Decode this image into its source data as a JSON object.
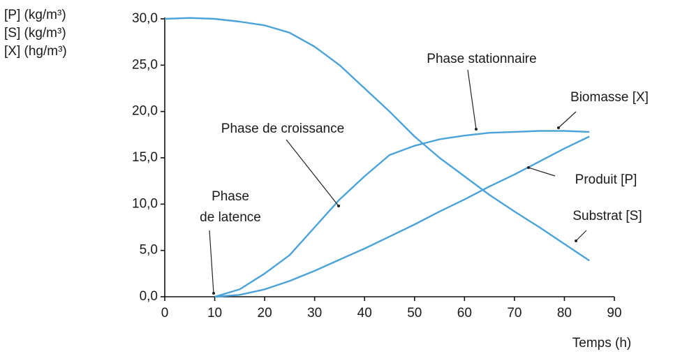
{
  "chart_data": {
    "type": "line",
    "y_label_lines": [
      "[P]  (kg/m³)",
      "[S]  (kg/m³)",
      "[X]  (hg/m³)"
    ],
    "x_label": "Temps (h)",
    "x": [
      0,
      5,
      10,
      15,
      20,
      25,
      30,
      35,
      40,
      45,
      50,
      55,
      60,
      65,
      70,
      75,
      80,
      85
    ],
    "series": [
      {
        "name": "Substrat [S]",
        "color": "#4aa3d8",
        "values": [
          30,
          30.1,
          30,
          29.7,
          29.3,
          28.5,
          27,
          25,
          22.5,
          20,
          17.3,
          15,
          13,
          11,
          9.2,
          7.5,
          5.7,
          3.9
        ]
      },
      {
        "name": "Biomasse [X]",
        "color": "#4aa3d8",
        "values": [
          null,
          null,
          0,
          0.8,
          2.5,
          4.5,
          7.5,
          10.5,
          13,
          15.3,
          16.3,
          17,
          17.4,
          17.7,
          17.8,
          17.9,
          17.9,
          17.8
        ]
      },
      {
        "name": "Produit [P]",
        "color": "#4aa3d8",
        "values": [
          null,
          null,
          0,
          0.2,
          0.8,
          1.7,
          2.8,
          4,
          5.2,
          6.5,
          7.8,
          9.2,
          10.5,
          11.9,
          13.2,
          14.6,
          16,
          17.3
        ]
      }
    ],
    "annotations": [
      {
        "lines": [
          "Phase stationnaire"
        ]
      },
      {
        "lines": [
          "Phase de croissance"
        ]
      },
      {
        "lines": [
          "Phase",
          "de latence"
        ]
      }
    ],
    "xlim": [
      0,
      90
    ],
    "xticks": [
      0,
      10,
      20,
      30,
      40,
      50,
      60,
      70,
      80,
      90
    ],
    "ylim": [
      0,
      30
    ],
    "yticks": [
      {
        "value": 0,
        "label": "0,0"
      },
      {
        "value": 5,
        "label": "5,0"
      },
      {
        "value": 10,
        "label": "10,0"
      },
      {
        "value": 15,
        "label": "15,0"
      },
      {
        "value": 20,
        "label": "20,0"
      },
      {
        "value": 25,
        "label": "25,0"
      },
      {
        "value": 30,
        "label": "30,0"
      }
    ]
  }
}
